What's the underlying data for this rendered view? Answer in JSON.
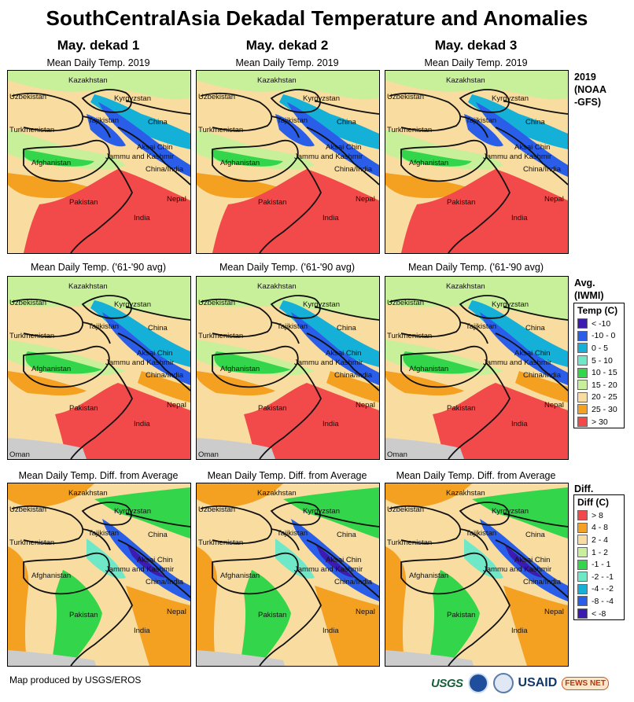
{
  "title": "SouthCentralAsia Dekadal Temperature and Anomalies",
  "columns": [
    "May. dekad 1",
    "May. dekad 2",
    "May. dekad 3"
  ],
  "rows": [
    {
      "subtitle": "Mean Daily Temp. 2019",
      "tag": [
        "2019",
        "(NOAA",
        "-GFS)"
      ]
    },
    {
      "subtitle": "Mean Daily Temp. ('61-'90 avg)",
      "tag": [
        "Avg.",
        "(IWMI)"
      ]
    },
    {
      "subtitle": "Mean Daily Temp. Diff. from Average",
      "tag": [
        "Diff."
      ]
    }
  ],
  "map_labels": {
    "kazakhstan": "Kazakhstan",
    "uzbekistan": "Uzbekistan",
    "kyrgyzstan": "Kyrgyzstan",
    "tajikistan": "Tajikistan",
    "turkmenistan": "Turkmenistan",
    "china": "China",
    "aksai_chin": "Aksai Chin",
    "jammu_kashmir": "Jammu and Kashmir",
    "china_india": "China/India",
    "afghanistan": "Afghanistan",
    "pakistan": "Pakistan",
    "nepal": "Nepal",
    "india": "India",
    "oman": "Oman"
  },
  "legend_temp": {
    "title": "Temp (C)",
    "items": [
      {
        "label": "< -10",
        "color": "#3b1bb0"
      },
      {
        "label": "-10 - 0",
        "color": "#2a5ee8"
      },
      {
        "label": "0 - 5",
        "color": "#14b0d8"
      },
      {
        "label": "5 - 10",
        "color": "#6fe8c8"
      },
      {
        "label": "10 - 15",
        "color": "#33d64a"
      },
      {
        "label": "15 - 20",
        "color": "#c8f09a"
      },
      {
        "label": "20 - 25",
        "color": "#f8dca0"
      },
      {
        "label": "25 - 30",
        "color": "#f4a020"
      },
      {
        "label": "> 30",
        "color": "#f24a4a"
      }
    ]
  },
  "legend_diff": {
    "title": "Diff (C)",
    "items": [
      {
        "label": "> 8",
        "color": "#f24a4a"
      },
      {
        "label": "4 - 8",
        "color": "#f4a020"
      },
      {
        "label": "2 - 4",
        "color": "#f8dca0"
      },
      {
        "label": "1 - 2",
        "color": "#c8f09a"
      },
      {
        "label": "-1 - 1",
        "color": "#33d64a"
      },
      {
        "label": "-2 - -1",
        "color": "#6fe8c8"
      },
      {
        "label": "-4 - -2",
        "color": "#14b0d8"
      },
      {
        "label": "-8 - -4",
        "color": "#2a5ee8"
      },
      {
        "label": "< -8",
        "color": "#3b1bb0"
      }
    ]
  },
  "footer": "Map produced by USGS/EROS",
  "logos": {
    "usgs": "USGS",
    "usaid": "USAID",
    "fews": "FEWS NET"
  }
}
